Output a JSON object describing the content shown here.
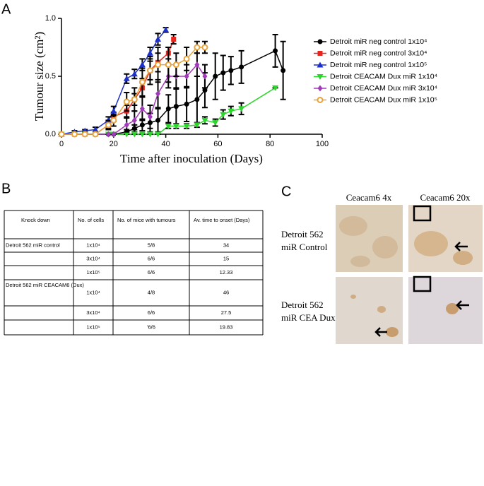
{
  "panel_labels": [
    "A",
    "B",
    "C"
  ],
  "chart_data": {
    "type": "line",
    "xlabel": "Time after inoculation (Days)",
    "ylabel": "Tumour size (cm²)",
    "xlim": [
      0,
      100
    ],
    "xticks": [
      0,
      20,
      40,
      60,
      80,
      100
    ],
    "ylim": [
      0,
      1
    ],
    "yticks": [
      {
        "value": 0,
        "label": "0.0"
      },
      {
        "value": 0.5,
        "label": "0.5"
      },
      {
        "value": 1,
        "label": "1.0"
      }
    ],
    "legend": "right",
    "series": [
      {
        "name": "Detroit miR neg control 1x10⁴",
        "color": "#000000",
        "marker": "circle",
        "x": [
          0,
          5,
          9,
          13,
          18,
          20,
          25,
          28,
          31,
          34,
          37,
          41,
          44,
          48,
          52,
          55,
          59,
          62,
          65,
          69,
          82,
          85
        ],
        "values": [
          0,
          0,
          0,
          0,
          0,
          0,
          0.02,
          0.05,
          0.08,
          0.1,
          0.12,
          0.22,
          0.24,
          0.26,
          0.3,
          0.38,
          0.5,
          0.53,
          0.55,
          0.58,
          0.72,
          0.55
        ],
        "errors": [
          0,
          0,
          0,
          0,
          0,
          0,
          0.02,
          0.03,
          0.05,
          0.08,
          0.1,
          0.12,
          0.15,
          0.15,
          0.2,
          0.15,
          0.2,
          0.15,
          0.12,
          0.14,
          0.14,
          0.25
        ]
      },
      {
        "name": "Detroit miR neg control 3x10⁴",
        "color": "#e8251c",
        "marker": "square",
        "x": [
          0,
          5,
          9,
          13,
          18,
          20,
          25,
          28,
          31,
          34,
          37,
          41,
          43
        ],
        "values": [
          0,
          0,
          0,
          0,
          0.08,
          0.15,
          0.2,
          0.3,
          0.4,
          0.55,
          0.62,
          0.7,
          0.82
        ],
        "errors": [
          0,
          0,
          0,
          0,
          0.03,
          0.04,
          0.05,
          0.05,
          0.08,
          0.08,
          0.08,
          0.05,
          0.04
        ]
      },
      {
        "name": "Detroit miR neg control 1x10⁵",
        "color": "#1c2fc8",
        "marker": "triangle-up",
        "x": [
          0,
          5,
          9,
          13,
          18,
          20,
          25,
          28,
          31,
          34,
          37,
          40
        ],
        "values": [
          0,
          0.02,
          0.03,
          0.04,
          0.12,
          0.2,
          0.48,
          0.52,
          0.6,
          0.7,
          0.82,
          0.9
        ],
        "errors": [
          0,
          0.01,
          0.01,
          0.02,
          0.03,
          0.04,
          0.04,
          0.04,
          0.05,
          0.05,
          0.05,
          0.02
        ]
      },
      {
        "name": "Detroit CEACAM Dux miR 1x10⁴",
        "color": "#2bd62b",
        "marker": "triangle-down",
        "x": [
          0,
          5,
          9,
          13,
          18,
          20,
          25,
          28,
          31,
          34,
          37,
          41,
          44,
          48,
          52,
          55,
          59,
          62,
          65,
          69,
          82
        ],
        "values": [
          0,
          0,
          0,
          0,
          0,
          0,
          0,
          0,
          0,
          0,
          0,
          0.07,
          0.07,
          0.07,
          0.08,
          0.12,
          0.1,
          0.17,
          0.2,
          0.22,
          0.4
        ],
        "errors": [
          0,
          0,
          0,
          0,
          0,
          0,
          0,
          0,
          0,
          0,
          0,
          0.02,
          0.02,
          0.02,
          0.02,
          0.03,
          0.03,
          0.04,
          0.04,
          0.05,
          0
        ]
      },
      {
        "name": "Detroit CEACAM Dux miR 3x10⁴",
        "color": "#a03ab8",
        "marker": "diamond",
        "x": [
          0,
          5,
          9,
          13,
          18,
          20,
          25,
          28,
          31,
          34,
          37,
          41,
          44,
          48,
          52,
          55
        ],
        "values": [
          0,
          0,
          0,
          0,
          0,
          0,
          0.08,
          0.12,
          0.22,
          0.15,
          0.35,
          0.5,
          0.5,
          0.5,
          0.6,
          0.5
        ],
        "errors": [
          0,
          0,
          0,
          0,
          0,
          0,
          0.06,
          0.08,
          0.1,
          0.1,
          0.12,
          0.1,
          0.1,
          0.1,
          0.1,
          0.1
        ]
      },
      {
        "name": "Detroit CEACAM Dux miR 1x10⁵",
        "color": "#e8a33c",
        "marker": "circle-open",
        "x": [
          0,
          5,
          9,
          13,
          18,
          20,
          25,
          28,
          31,
          34,
          37,
          41,
          44,
          48,
          52,
          55
        ],
        "values": [
          0,
          0,
          0,
          0,
          0.08,
          0.12,
          0.28,
          0.3,
          0.45,
          0.55,
          0.6,
          0.6,
          0.6,
          0.65,
          0.75,
          0.75
        ],
        "errors": [
          0,
          0,
          0,
          0,
          0.04,
          0.05,
          0.08,
          0.1,
          0.12,
          0.12,
          0.15,
          0.15,
          0.1,
          0.1,
          0.05,
          0.05
        ]
      }
    ]
  },
  "table": {
    "header": [
      "Knock down",
      "No. of cells",
      "No. of mice with tumours",
      "Av. time to onset (Days)"
    ],
    "rows": [
      [
        "Detroit 562 miR control",
        "1x10⁴",
        "5/8",
        "34"
      ],
      [
        null,
        "3x10⁴",
        "6/6",
        "15"
      ],
      [
        null,
        "1x10⁵",
        "6/6",
        "12.33"
      ],
      [
        "Detroit 562 miR CEACAM6 (Dux)",
        "1x10⁴",
        "4/8",
        "46"
      ],
      [
        null,
        "3x10⁴",
        "6/6",
        "27.5"
      ],
      [
        null,
        "1x10⁵",
        "'6/6",
        "19.83"
      ]
    ]
  },
  "images": {
    "columns": [
      "Ceacam6 4x",
      "Ceacam6 20x"
    ],
    "rows": [
      [
        "Detroit 562",
        "miR Control"
      ],
      [
        "Detroit 562",
        "miR CEA Dux"
      ]
    ]
  }
}
